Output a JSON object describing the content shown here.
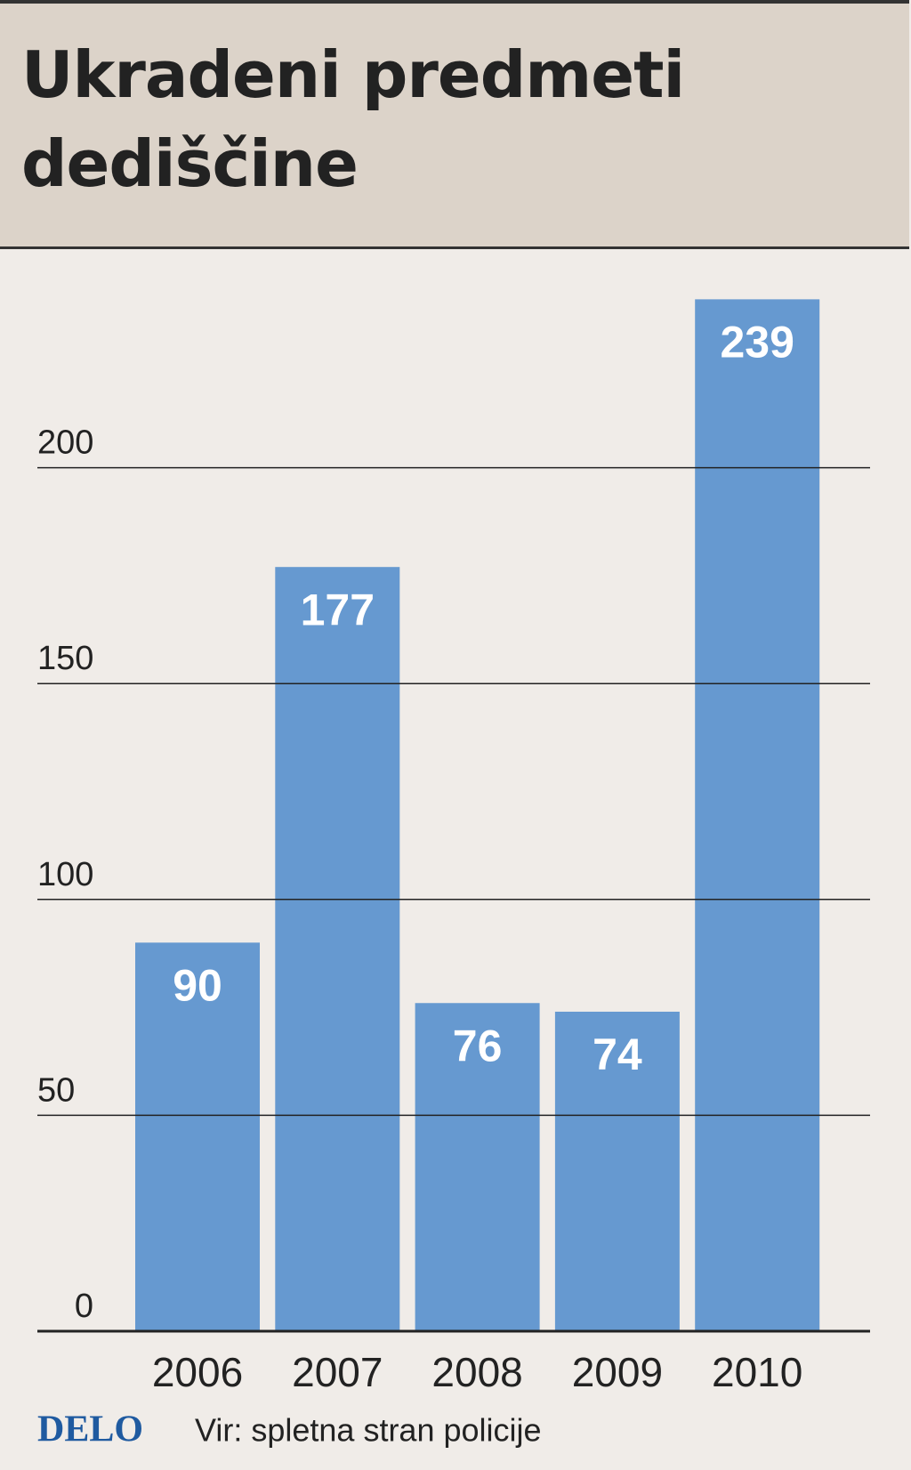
{
  "chart_data": {
    "type": "bar",
    "title": "Ukradeni predmeti dediščine",
    "categories": [
      "2006",
      "2007",
      "2008",
      "2009",
      "2010"
    ],
    "values": [
      90,
      177,
      76,
      74,
      239
    ],
    "color": "#6699d0",
    "ylim": [
      0,
      250
    ],
    "yticks": [
      0,
      50,
      100,
      150,
      200
    ],
    "grid": true,
    "logo": "DELO",
    "source": "Vir: spletna stran policije"
  }
}
